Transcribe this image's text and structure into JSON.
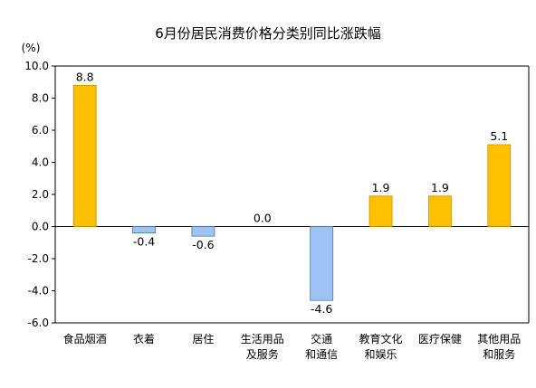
{
  "chart_data": {
    "type": "bar",
    "title": "6月份居民消费价格分类别同比涨跌幅",
    "unit": "(%)",
    "categories": [
      [
        "食品烟酒"
      ],
      [
        "衣着"
      ],
      [
        "居住"
      ],
      [
        "生活用品",
        "及服务"
      ],
      [
        "交通",
        "和通信"
      ],
      [
        "教育文化",
        "和娱乐"
      ],
      [
        "医疗保健"
      ],
      [
        "其他用品",
        "和服务"
      ]
    ],
    "values": [
      8.8,
      -0.4,
      -0.6,
      0.0,
      -4.6,
      1.9,
      1.9,
      5.1
    ],
    "value_labels": [
      "8.8",
      "-0.4",
      "-0.6",
      "0.0",
      "-4.6",
      "1.9",
      "1.9",
      "5.1"
    ],
    "ylim": [
      -6.0,
      10.0
    ],
    "yticks": [
      10.0,
      8.0,
      6.0,
      4.0,
      2.0,
      0.0,
      -2.0,
      -4.0,
      -6.0
    ],
    "ytick_labels": [
      "10.0",
      "8.0",
      "6.0",
      "4.0",
      "2.0",
      "0.0",
      "-2.0",
      "-4.0",
      "-6.0"
    ],
    "grid": false,
    "colors": {
      "positive_fill": "#FFC000",
      "positive_stroke": "#C88F00",
      "negative_fill": "#9DC3F5",
      "negative_stroke": "#4A74B8",
      "axis": "#000000"
    }
  }
}
